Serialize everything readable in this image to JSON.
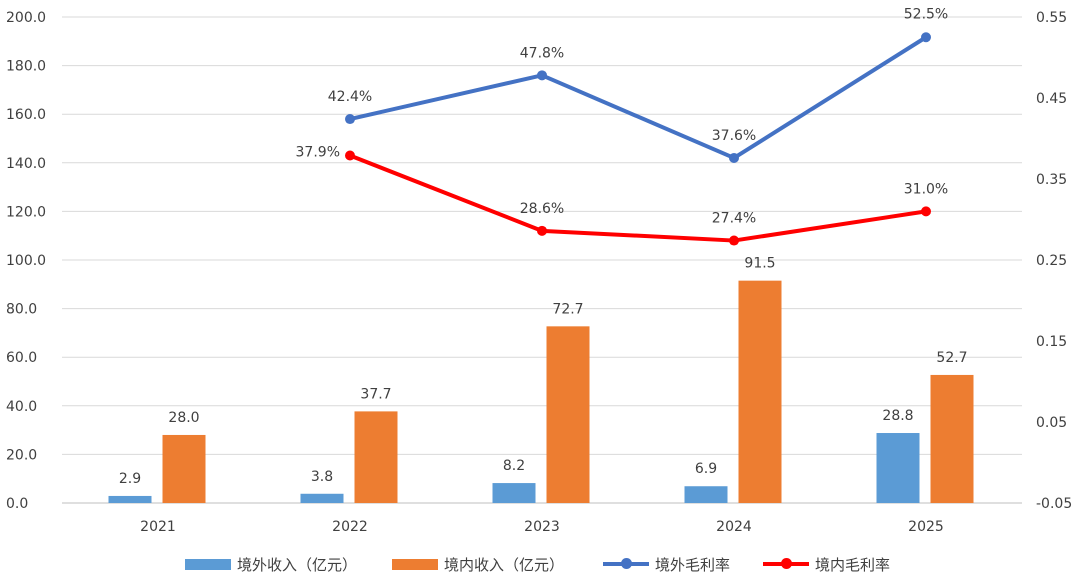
{
  "chart_data": {
    "type": "bar+line",
    "categories": [
      "2021",
      "2022",
      "2023",
      "2024",
      "2025"
    ],
    "series": [
      {
        "name": "境外收入（亿元）",
        "type": "bar",
        "axis": "left",
        "color": "#5B9BD5",
        "values": [
          2.9,
          3.8,
          8.2,
          6.9,
          28.8
        ],
        "labels": [
          "2.9",
          "3.8",
          "8.2",
          "6.9",
          "28.8"
        ]
      },
      {
        "name": "境内收入（亿元）",
        "type": "bar",
        "axis": "left",
        "color": "#ED7D31",
        "values": [
          28.0,
          37.7,
          72.7,
          91.5,
          52.7
        ],
        "labels": [
          "28.0",
          "37.7",
          "72.7",
          "91.5",
          "52.7"
        ]
      },
      {
        "name": "境外毛利率",
        "type": "line",
        "axis": "right",
        "color": "#4472C4",
        "values": [
          null,
          0.424,
          0.478,
          0.376,
          0.525
        ],
        "labels": [
          null,
          "42.4%",
          "47.8%",
          "37.6%",
          "52.5%"
        ]
      },
      {
        "name": "境内毛利率",
        "type": "line",
        "axis": "right",
        "color": "#FF0000",
        "values": [
          null,
          0.379,
          0.286,
          0.274,
          0.31
        ],
        "labels": [
          null,
          "37.9%",
          "28.6%",
          "27.4%",
          "31.0%"
        ]
      }
    ],
    "left_axis": {
      "ylim": [
        0,
        200
      ],
      "ticks": [
        "0.0",
        "20.0",
        "40.0",
        "60.0",
        "80.0",
        "100.0",
        "120.0",
        "140.0",
        "160.0",
        "180.0",
        "200.0"
      ]
    },
    "right_axis": {
      "ylim": [
        -0.05,
        0.55
      ],
      "ticks": [
        "-0.05",
        "0.05",
        "0.15",
        "0.25",
        "0.35",
        "0.45",
        "0.55"
      ]
    },
    "grid": true,
    "legend_position": "bottom"
  }
}
